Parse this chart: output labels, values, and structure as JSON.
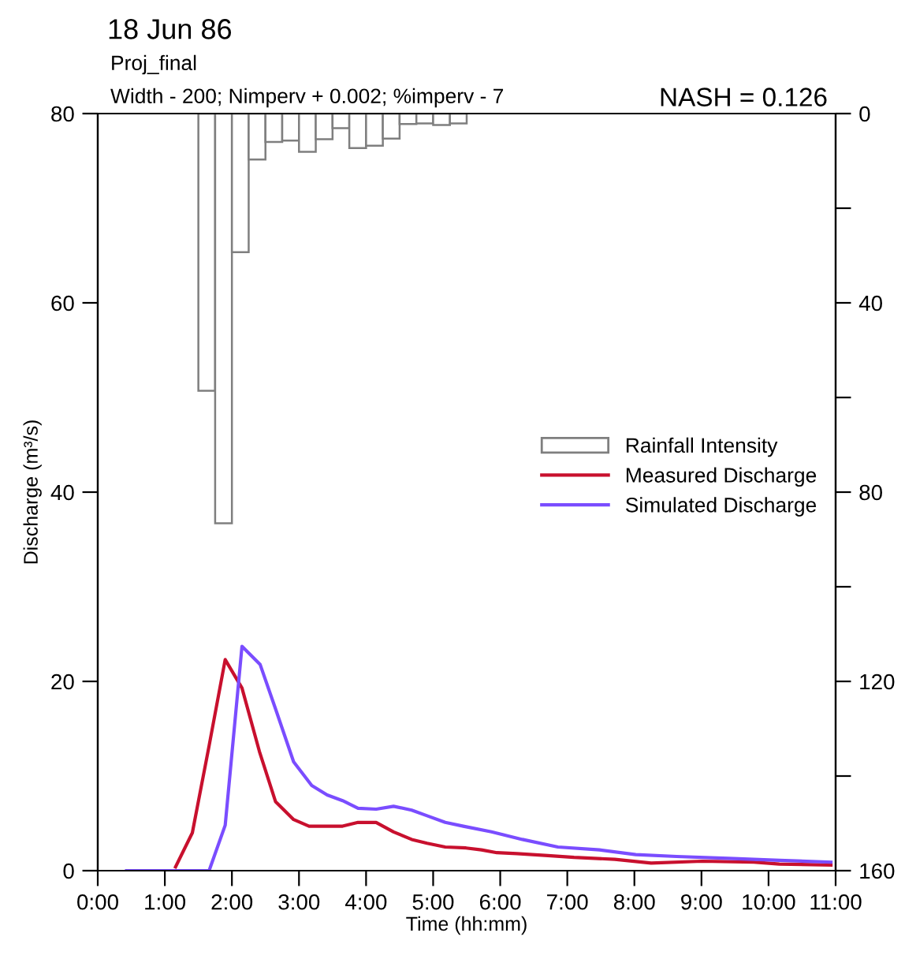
{
  "chart_data": {
    "type": "line",
    "title": "18 Jun 86",
    "annotations": [
      "Proj_final",
      "Width - 200; Nimperv + 0.002; %imperv - 7",
      "NASH = 0.126"
    ],
    "xlabel": "Time (hh:mm)",
    "ylabel": "Discharge (m³/s)",
    "xlim": [
      0,
      11
    ],
    "xticks": [
      {
        "value": 0,
        "label": "0:00"
      },
      {
        "value": 1,
        "label": "1:00"
      },
      {
        "value": 2,
        "label": "2:00"
      },
      {
        "value": 3,
        "label": "3:00"
      },
      {
        "value": 4,
        "label": "4:00"
      },
      {
        "value": 5,
        "label": "5:00"
      },
      {
        "value": 6,
        "label": "6:00"
      },
      {
        "value": 7,
        "label": "7:00"
      },
      {
        "value": 8,
        "label": "8:00"
      },
      {
        "value": 9,
        "label": "9:00"
      },
      {
        "value": 10,
        "label": "10:00"
      },
      {
        "value": 11,
        "label": "11:00"
      }
    ],
    "ylim": [
      0,
      80
    ],
    "yticks": [
      0,
      20,
      40,
      60,
      80
    ],
    "y2lim": [
      160,
      0
    ],
    "y2ticks": [
      0,
      {
        "value": 20,
        "label": null
      },
      40,
      {
        "value": 60,
        "label": null
      },
      80,
      {
        "value": 100,
        "label": null
      },
      120,
      {
        "value": 140,
        "label": null
      },
      160
    ],
    "grid": false,
    "legend": "right",
    "line_style": "solid",
    "marker": "none",
    "series": [
      {
        "name": "Rainfall Intensity",
        "type": "bar",
        "axis": "y2",
        "color": "#ffffff",
        "x": [
          1.625,
          1.875,
          2.125,
          2.375,
          2.625,
          2.875,
          3.125,
          3.375,
          3.625,
          3.875,
          4.125,
          4.375,
          4.625,
          4.875,
          5.125,
          5.375
        ],
        "values": [
          58.6,
          86.6,
          29.3,
          9.7,
          6.0,
          5.7,
          8.1,
          5.4,
          3.1,
          7.3,
          6.8,
          5.3,
          2.2,
          2.1,
          2.4,
          2.1
        ]
      },
      {
        "name": "Measured Discharge",
        "color": "#c8102e",
        "x": [
          1.16,
          1.41,
          1.66,
          1.9,
          2.15,
          2.41,
          2.65,
          2.92,
          3.15,
          3.42,
          3.65,
          3.88,
          4.15,
          4.41,
          4.68,
          4.91,
          5.18,
          5.49,
          5.72,
          5.95,
          6.25,
          6.71,
          7.1,
          7.71,
          8.25,
          9.01,
          9.78,
          10.16,
          10.93
        ],
        "values": [
          0.4,
          4.0,
          13.2,
          22.3,
          19.3,
          12.6,
          7.3,
          5.4,
          4.7,
          4.7,
          4.7,
          5.1,
          5.1,
          4.1,
          3.3,
          2.9,
          2.5,
          2.4,
          2.2,
          1.9,
          1.8,
          1.6,
          1.4,
          1.2,
          0.8,
          1.0,
          0.9,
          0.7,
          0.6
        ]
      },
      {
        "name": "Simulated Discharge",
        "color": "#7a4dff",
        "x": [
          0.43,
          1.66,
          1.9,
          2.15,
          2.42,
          2.65,
          2.92,
          3.19,
          3.42,
          3.65,
          3.88,
          4.15,
          4.41,
          4.68,
          4.91,
          5.18,
          5.45,
          5.87,
          6.33,
          6.86,
          7.48,
          8.02,
          8.63,
          9.4,
          10.16,
          10.93
        ],
        "values": [
          0,
          0,
          4.8,
          23.7,
          21.8,
          17.1,
          11.5,
          9.0,
          8.0,
          7.4,
          6.6,
          6.5,
          6.8,
          6.4,
          5.8,
          5.1,
          4.7,
          4.1,
          3.3,
          2.5,
          2.2,
          1.7,
          1.5,
          1.3,
          1.1,
          0.9
        ]
      }
    ]
  }
}
